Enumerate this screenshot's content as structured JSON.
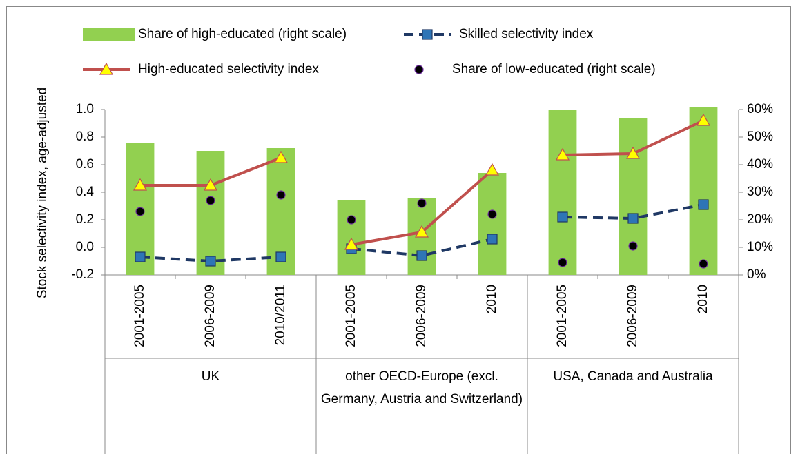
{
  "chart_data": {
    "type": "combo",
    "y_label": "Stock selectivity index, age-adjusted",
    "ylim": [
      -0.2,
      1.0
    ],
    "yticks": [
      {
        "value": -0.2,
        "label": "-0.2"
      },
      {
        "value": 0,
        "label": "0.0"
      },
      0.2,
      0.4,
      0.6,
      0.8,
      {
        "value": 1,
        "label": "1.0"
      }
    ],
    "y2lim": [
      0,
      60
    ],
    "y2ticks": [
      {
        "value": 0,
        "label": "0%"
      },
      {
        "value": 10,
        "label": "10%"
      },
      {
        "value": 20,
        "label": "20%"
      },
      {
        "value": 30,
        "label": "30%"
      },
      {
        "value": 40,
        "label": "40%"
      },
      {
        "value": 50,
        "label": "50%"
      },
      {
        "value": 60,
        "label": "60%"
      }
    ],
    "groups": [
      {
        "name": "UK",
        "categories": [
          "2001-2005",
          "2006-2009",
          "2010/2011"
        ]
      },
      {
        "name": "other OECD-Europe (excl. Germany, Austria and Switzerland)",
        "categories": [
          "2001-2005",
          "2006-2009",
          "2010"
        ]
      },
      {
        "name": "USA, Canada and Australia",
        "categories": [
          "2001-2005",
          "2006-2009",
          "2010"
        ]
      }
    ],
    "series": [
      {
        "name": "Share of high-educated (right scale)",
        "type": "bar",
        "axis": "y2",
        "color": "#92d050",
        "values": [
          [
            48,
            45,
            46
          ],
          [
            27,
            28,
            37
          ],
          [
            60,
            57,
            61
          ]
        ]
      },
      {
        "name": "Skilled selectivity index",
        "type": "line",
        "color": "#1f3864",
        "marker": "square",
        "marker_color": "#2e75b6",
        "dash": true,
        "values": [
          [
            -0.07,
            -0.1,
            -0.07
          ],
          [
            -0.01,
            -0.06,
            0.06
          ],
          [
            0.22,
            0.21,
            0.31
          ]
        ]
      },
      {
        "name": "High-educated selectivity index",
        "type": "line",
        "color": "#c0504d",
        "marker": "triangle",
        "marker_color": "#ffff00",
        "dash": false,
        "values": [
          [
            0.45,
            0.45,
            0.65
          ],
          [
            0.02,
            0.11,
            0.56
          ],
          [
            0.67,
            0.68,
            0.92
          ]
        ]
      },
      {
        "name": "Share of low-educated (right scale)",
        "type": "scatter",
        "axis": "y2",
        "color": "#000000",
        "marker": "circle",
        "marker_color": "#7030a0",
        "values": [
          [
            23,
            27,
            29
          ],
          [
            20,
            26,
            22
          ],
          [
            4.5,
            10.5,
            4
          ]
        ]
      }
    ]
  }
}
